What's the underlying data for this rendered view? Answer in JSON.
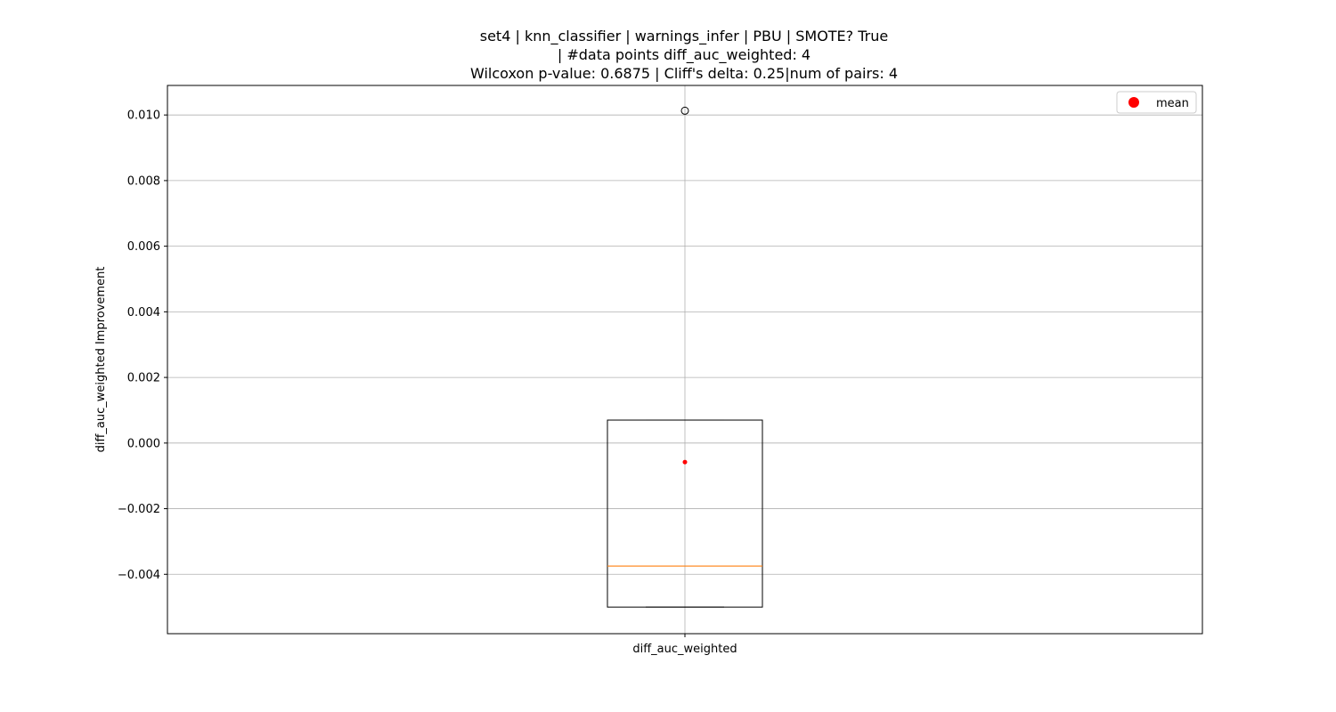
{
  "chart_data": {
    "type": "box",
    "title_lines": [
      "set4 | knn_classifier | warnings_infer | PBU | SMOTE? True",
      "| #data points diff_auc_weighted: 4",
      "Wilcoxon p-value: 0.6875 | Cliff's delta: 0.25|num of pairs: 4"
    ],
    "ylabel": "diff_auc_weighted Improvement",
    "xlabel": "",
    "categories": [
      "diff_auc_weighted"
    ],
    "ylim": [
      -0.00581,
      0.0109
    ],
    "yticks": [
      -0.004,
      -0.002,
      0.0,
      0.002,
      0.004,
      0.006,
      0.008,
      0.01
    ],
    "ytick_labels": [
      "−0.004",
      "−0.002",
      "0.000",
      "0.002",
      "0.004",
      "0.006",
      "0.008",
      "0.010"
    ],
    "grid": true,
    "legend": {
      "placement": "top-right",
      "entries": [
        {
          "label": "mean",
          "color": "#ff0000",
          "marker": "circle"
        }
      ]
    },
    "boxes": [
      {
        "category": "diff_auc_weighted",
        "whisker_low": -0.005,
        "q1": -0.005,
        "median": -0.00375,
        "q3": 0.0007,
        "whisker_high": 0.0007,
        "mean": -0.00058,
        "outliers": [
          0.01013
        ]
      }
    ],
    "colors": {
      "box": "#000000",
      "median": "#ff7f0e",
      "mean": "#ff0000",
      "grid": "#b0b0b0"
    }
  }
}
